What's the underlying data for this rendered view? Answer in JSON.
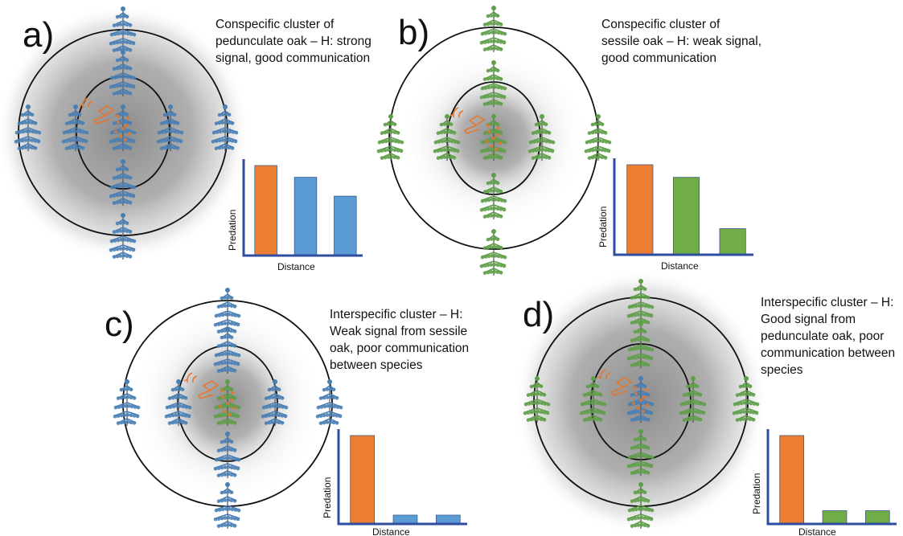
{
  "colors": {
    "pedunculate": "#4a7fb5",
    "sessile": "#5e9e48",
    "treated": "#e8752a",
    "bar_orange": "#ed7d31",
    "bar_blue": "#5b9bd5",
    "bar_green": "#70ad47",
    "axis": "#2f4d9e"
  },
  "panels": [
    {
      "id": "a",
      "label": "a)",
      "description": [
        "Conspecific cluster of",
        "pedunculate oak – H: strong",
        "signal, good communication"
      ],
      "center_tree": "pedunculate",
      "neighbor_tree": "pedunculate",
      "shading": "wide",
      "chart": {
        "xlabel": "Distance",
        "ylabel": "Predation",
        "bars": [
          {
            "value": 1.0,
            "color": "bar_orange"
          },
          {
            "value": 0.87,
            "color": "bar_blue"
          },
          {
            "value": 0.66,
            "color": "bar_blue"
          }
        ]
      }
    },
    {
      "id": "b",
      "label": "b)",
      "description": [
        "Conspecific cluster of",
        "sessile oak – H: weak signal,",
        "good communication"
      ],
      "center_tree": "sessile",
      "neighbor_tree": "sessile",
      "shading": "narrow",
      "chart": {
        "xlabel": "Distance",
        "ylabel": "Predation",
        "bars": [
          {
            "value": 1.0,
            "color": "bar_orange"
          },
          {
            "value": 0.86,
            "color": "bar_green"
          },
          {
            "value": 0.29,
            "color": "bar_green"
          }
        ]
      }
    },
    {
      "id": "c",
      "label": "c)",
      "description": [
        "Interspecific cluster – H:",
        "Weak signal from sessile",
        "oak, poor communication",
        "between species"
      ],
      "center_tree": "sessile",
      "neighbor_tree": "pedunculate",
      "shading": "narrow",
      "chart": {
        "xlabel": "Distance",
        "ylabel": "Predation",
        "bars": [
          {
            "value": 1.0,
            "color": "bar_orange"
          },
          {
            "value": 0.1,
            "color": "bar_blue"
          },
          {
            "value": 0.1,
            "color": "bar_blue"
          }
        ]
      }
    },
    {
      "id": "d",
      "label": "d)",
      "description": [
        "Interspecific cluster – H:",
        "Good signal from",
        "pedunculate oak, poor",
        "communication between",
        "species"
      ],
      "center_tree": "pedunculate",
      "neighbor_tree": "sessile",
      "shading": "wide",
      "chart": {
        "xlabel": "Distance",
        "ylabel": "Predation",
        "bars": [
          {
            "value": 1.0,
            "color": "bar_orange"
          },
          {
            "value": 0.15,
            "color": "bar_green"
          },
          {
            "value": 0.15,
            "color": "bar_green"
          }
        ]
      }
    }
  ]
}
